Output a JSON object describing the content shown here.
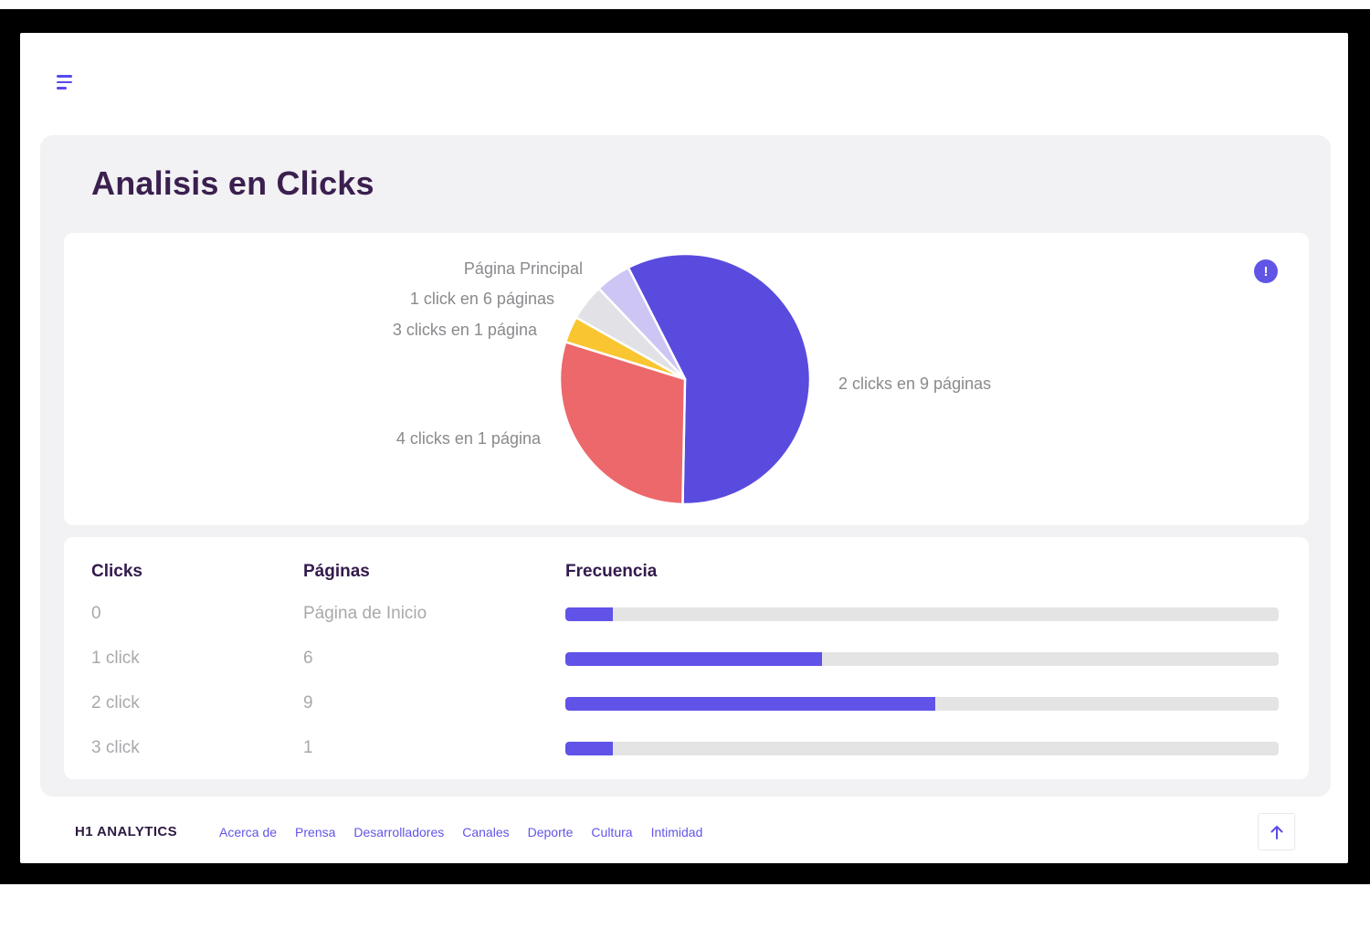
{
  "page": {
    "title": "Analisis en Clicks"
  },
  "icons": {
    "menu": "hamburger-menu",
    "info": "!",
    "scroll_top": "arrow-up"
  },
  "chart_data": {
    "type": "pie",
    "title": "Analisis en Clicks",
    "start_angle_deg": -27,
    "legend_position": "around-slices",
    "slices": [
      {
        "label": "2 clicks en 9 páginas",
        "percent": 57.8,
        "color": "#5A4BDF"
      },
      {
        "label": "4 clicks en 1 página",
        "percent": 29.5,
        "color": "#EC686B"
      },
      {
        "label": "3 clicks en 1 página",
        "percent": 3.4,
        "color": "#F9C631"
      },
      {
        "label": "1 click en 6 páginas",
        "percent": 4.7,
        "color": "#E2E1E6"
      },
      {
        "label": "Página Principal",
        "percent": 4.6,
        "color": "#CDC6F4"
      }
    ],
    "label_color": "#8A8A8E"
  },
  "table": {
    "headers": [
      "Clicks",
      "Páginas",
      "Frecuencia"
    ],
    "rows": [
      {
        "clicks": "0",
        "paginas": "Página de Inicio",
        "frecuencia_pct": 6.7
      },
      {
        "clicks": "1 click",
        "paginas": "6",
        "frecuencia_pct": 36.0
      },
      {
        "clicks": "2 click",
        "paginas": "9",
        "frecuencia_pct": 51.8
      },
      {
        "clicks": "3 click",
        "paginas": "1",
        "frecuencia_pct": 6.7
      }
    ],
    "bar_color": "#6152E8",
    "track_color": "#E4E4E4"
  },
  "footer": {
    "brand": "H1 ANALYTICS",
    "links": [
      "Acerca de",
      "Prensa",
      "Desarrolladores",
      "Canales",
      "Deporte",
      "Cultura",
      "Intimidad"
    ]
  }
}
